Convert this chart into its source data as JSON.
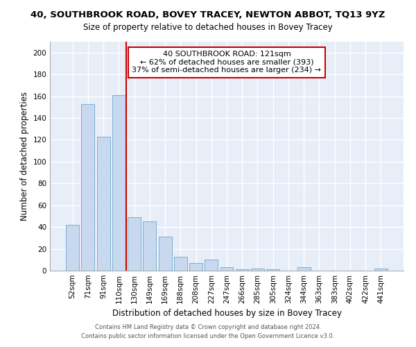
{
  "title": "40, SOUTHBROOK ROAD, BOVEY TRACEY, NEWTON ABBOT, TQ13 9YZ",
  "subtitle": "Size of property relative to detached houses in Bovey Tracey",
  "xlabel": "Distribution of detached houses by size in Bovey Tracey",
  "ylabel": "Number of detached properties",
  "categories": [
    "52sqm",
    "71sqm",
    "91sqm",
    "110sqm",
    "130sqm",
    "149sqm",
    "169sqm",
    "188sqm",
    "208sqm",
    "227sqm",
    "247sqm",
    "266sqm",
    "285sqm",
    "305sqm",
    "324sqm",
    "344sqm",
    "363sqm",
    "383sqm",
    "402sqm",
    "422sqm",
    "441sqm"
  ],
  "values": [
    42,
    153,
    123,
    161,
    49,
    45,
    31,
    13,
    7,
    10,
    3,
    1,
    2,
    1,
    0,
    3,
    0,
    0,
    0,
    0,
    2
  ],
  "bar_color": "#c8d9ef",
  "bar_edge_color": "#7bafd4",
  "redline_x": 3.5,
  "annotation_line1": "40 SOUTHBROOK ROAD: 121sqm",
  "annotation_line2": "← 62% of detached houses are smaller (393)",
  "annotation_line3": "37% of semi-detached houses are larger (234) →",
  "annotation_box_color": "white",
  "annotation_box_edge_color": "#cc0000",
  "redline_color": "#cc0000",
  "ylim": [
    0,
    210
  ],
  "yticks": [
    0,
    20,
    40,
    60,
    80,
    100,
    120,
    140,
    160,
    180,
    200
  ],
  "footer_line1": "Contains HM Land Registry data © Crown copyright and database right 2024.",
  "footer_line2": "Contains public sector information licensed under the Open Government Licence v3.0.",
  "plot_bg_color": "#e8eef8",
  "fig_bg_color": "#ffffff",
  "grid_color": "#ffffff",
  "title_fontsize": 9.5,
  "subtitle_fontsize": 8.5,
  "axis_label_fontsize": 8.5,
  "tick_fontsize": 7.5,
  "annotation_fontsize": 8.0
}
